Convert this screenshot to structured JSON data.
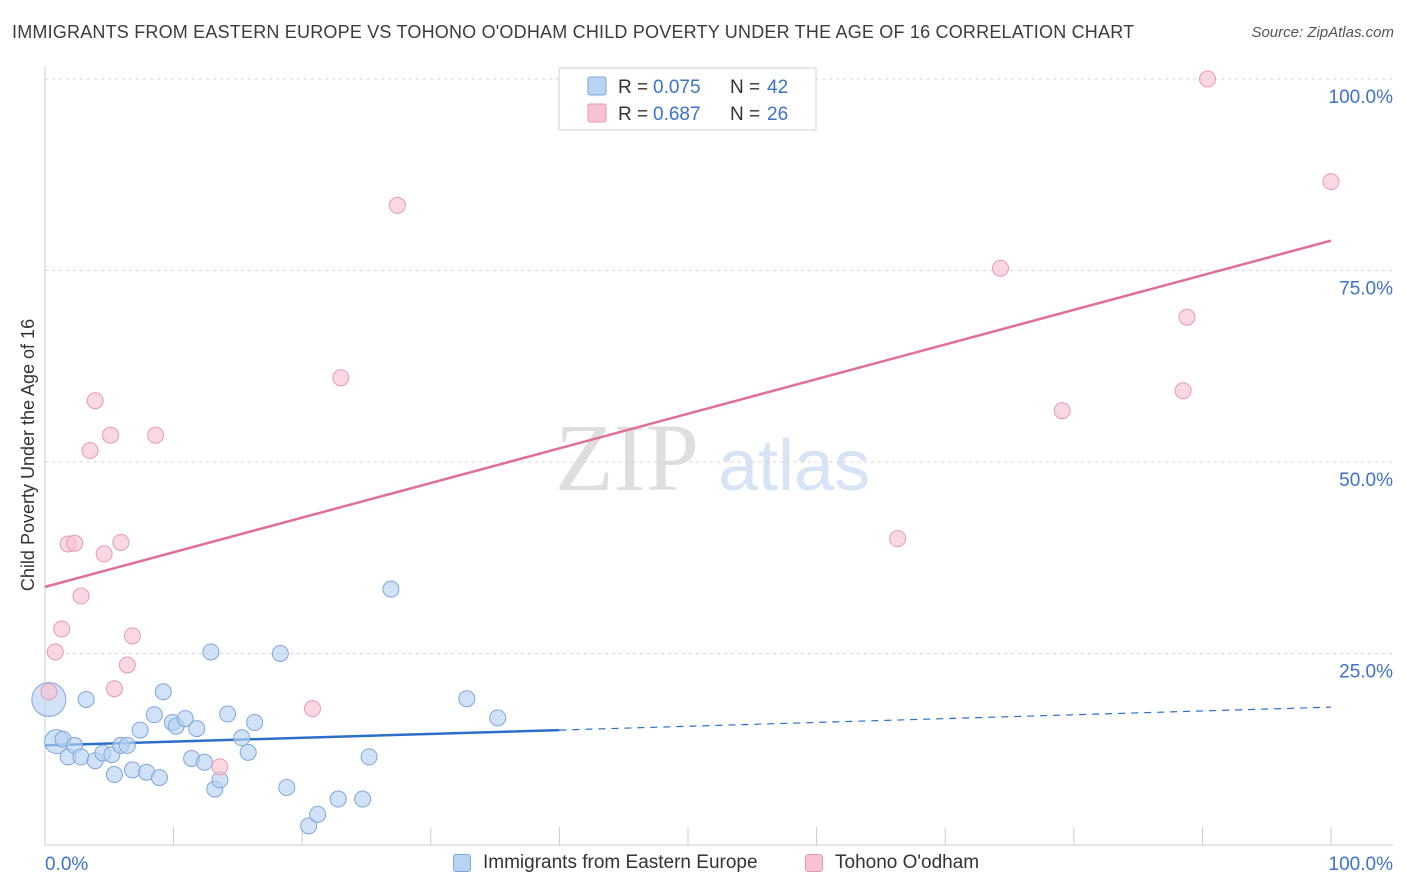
{
  "header": {
    "title": "IMMIGRANTS FROM EASTERN EUROPE VS TOHONO O'ODHAM CHILD POVERTY UNDER THE AGE OF 16 CORRELATION CHART",
    "source": "Source: ZipAtlas.com"
  },
  "watermark": {
    "zip": "ZIP",
    "atlas": "atlas"
  },
  "colors": {
    "blue_fill": "#b9d3f3",
    "blue_stroke": "#7ea6dc",
    "blue_line": "#2c6fc9",
    "pink_fill": "#f7c3d2",
    "pink_stroke": "#e79ab3",
    "pink_line": "#e06f96",
    "value_text": "#3d72c9",
    "grid": "#d6d6d6"
  },
  "legend": {
    "rows": [
      {
        "r_label": "R = ",
        "r_value": "0.075",
        "n_label": "N = ",
        "n_value": "42"
      },
      {
        "r_label": "R = ",
        "r_value": "0.687",
        "n_label": "N = ",
        "n_value": "26"
      }
    ]
  },
  "chart_data": {
    "type": "scatter",
    "title": "IMMIGRANTS FROM EASTERN EUROPE VS TOHONO O'ODHAM CHILD POVERTY UNDER THE AGE OF 16 CORRELATION CHART",
    "xlabel": "",
    "ylabel": "Child Poverty Under the Age of 16",
    "xlim": [
      0,
      100
    ],
    "ylim": [
      0,
      100
    ],
    "x_tick_labels": [
      "0.0%",
      "100.0%"
    ],
    "y_tick_labels": [
      "25.0%",
      "50.0%",
      "75.0%",
      "100.0%"
    ],
    "y_ticks": [
      25,
      50,
      75,
      100
    ],
    "grid": true,
    "series": [
      {
        "name": "Immigrants from Eastern Europe",
        "color": "blue",
        "points": [
          {
            "x": 0.3,
            "y": 19,
            "size": "large"
          },
          {
            "x": 0.9,
            "y": 13.5,
            "size": "medium"
          },
          {
            "x": 1.4,
            "y": 13.8
          },
          {
            "x": 1.8,
            "y": 11.5
          },
          {
            "x": 2.3,
            "y": 13
          },
          {
            "x": 2.8,
            "y": 11.5
          },
          {
            "x": 3.2,
            "y": 19
          },
          {
            "x": 3.9,
            "y": 11
          },
          {
            "x": 4.5,
            "y": 12
          },
          {
            "x": 5.2,
            "y": 11.8
          },
          {
            "x": 5.4,
            "y": 9.2
          },
          {
            "x": 5.9,
            "y": 13
          },
          {
            "x": 6.4,
            "y": 13
          },
          {
            "x": 6.8,
            "y": 9.8
          },
          {
            "x": 7.4,
            "y": 15
          },
          {
            "x": 7.9,
            "y": 9.5
          },
          {
            "x": 8.5,
            "y": 17
          },
          {
            "x": 8.9,
            "y": 8.8
          },
          {
            "x": 9.2,
            "y": 20
          },
          {
            "x": 9.9,
            "y": 16
          },
          {
            "x": 10.2,
            "y": 15.5
          },
          {
            "x": 10.9,
            "y": 16.5
          },
          {
            "x": 11.4,
            "y": 11.3
          },
          {
            "x": 11.8,
            "y": 15.2
          },
          {
            "x": 12.4,
            "y": 10.8
          },
          {
            "x": 12.9,
            "y": 25.2
          },
          {
            "x": 13.2,
            "y": 7.3
          },
          {
            "x": 13.6,
            "y": 8.5
          },
          {
            "x": 14.2,
            "y": 17.1
          },
          {
            "x": 15.3,
            "y": 14
          },
          {
            "x": 15.8,
            "y": 12.1
          },
          {
            "x": 16.3,
            "y": 16
          },
          {
            "x": 18.3,
            "y": 25
          },
          {
            "x": 18.8,
            "y": 7.5
          },
          {
            "x": 20.5,
            "y": 2.5
          },
          {
            "x": 21.2,
            "y": 4
          },
          {
            "x": 22.8,
            "y": 6
          },
          {
            "x": 24.7,
            "y": 6
          },
          {
            "x": 25.2,
            "y": 11.5
          },
          {
            "x": 26.9,
            "y": 33.4
          },
          {
            "x": 32.8,
            "y": 19.1
          },
          {
            "x": 35.2,
            "y": 16.6
          }
        ],
        "trend": {
          "x_start": 0,
          "y_start": 13,
          "x_solid_end": 40,
          "y_solid_end": 15,
          "x_end": 100,
          "y_end": 18
        }
      },
      {
        "name": "Tohono O'odham",
        "color": "pink",
        "points": [
          {
            "x": 0.3,
            "y": 20
          },
          {
            "x": 0.8,
            "y": 25.2
          },
          {
            "x": 1.3,
            "y": 28.2
          },
          {
            "x": 1.8,
            "y": 39.3
          },
          {
            "x": 2.3,
            "y": 39.4
          },
          {
            "x": 2.8,
            "y": 32.5
          },
          {
            "x": 3.5,
            "y": 51.5
          },
          {
            "x": 3.9,
            "y": 58
          },
          {
            "x": 4.6,
            "y": 38
          },
          {
            "x": 5.1,
            "y": 53.5
          },
          {
            "x": 5.4,
            "y": 20.4
          },
          {
            "x": 5.9,
            "y": 39.5
          },
          {
            "x": 6.4,
            "y": 23.5
          },
          {
            "x": 6.8,
            "y": 27.3
          },
          {
            "x": 8.6,
            "y": 53.5
          },
          {
            "x": 13.6,
            "y": 10.2
          },
          {
            "x": 20.8,
            "y": 17.8
          },
          {
            "x": 23.0,
            "y": 61
          },
          {
            "x": 27.4,
            "y": 83.5
          },
          {
            "x": 66.3,
            "y": 40
          },
          {
            "x": 74.3,
            "y": 75.3
          },
          {
            "x": 79.1,
            "y": 56.7
          },
          {
            "x": 88.5,
            "y": 59.3
          },
          {
            "x": 88.8,
            "y": 68.9
          },
          {
            "x": 90.4,
            "y": 100
          },
          {
            "x": 100,
            "y": 86.6
          }
        ],
        "trend": {
          "x_start": 0,
          "y_start": 33.7,
          "x_end": 100,
          "y_end": 78.9
        }
      }
    ]
  },
  "bottom_legend": {
    "blue_label": "Immigrants from Eastern Europe",
    "pink_label": "Tohono O'odham"
  }
}
